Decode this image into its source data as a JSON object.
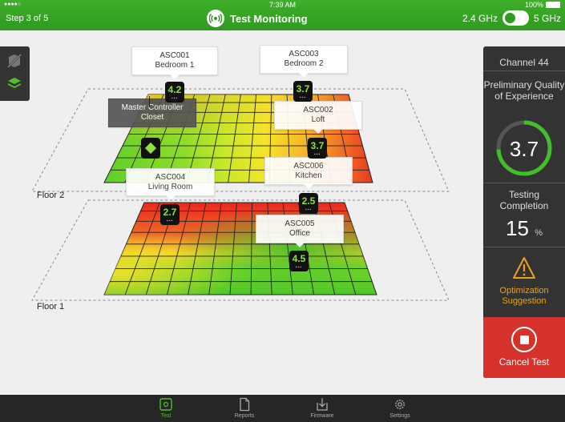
{
  "status_bar": {
    "clock": "7:39 AM",
    "battery": "100%"
  },
  "header": {
    "step": "Step 3 of 5",
    "title": "Test Monitoring",
    "band_left": "2.4 GHz",
    "band_right": "5 GHz",
    "band_toggle_on": true
  },
  "floors": [
    {
      "label": "Floor 2"
    },
    {
      "label": "Floor 1"
    }
  ],
  "controller": {
    "id": "Master Controller",
    "room": "Closet"
  },
  "devices": [
    {
      "id": "ASC001",
      "room": "Bedroom 1",
      "score": "4.2"
    },
    {
      "id": "ASC003",
      "room": "Bedroom 2",
      "score": "3.7"
    },
    {
      "id": "ASC002",
      "room": "Loft",
      "score": "3.7"
    },
    {
      "id": "ASC004",
      "room": "Living Room",
      "score": "2.7"
    },
    {
      "id": "ASC006",
      "room": "Kitchen",
      "score": "2.5"
    },
    {
      "id": "ASC005",
      "room": "Office",
      "score": "4.5"
    }
  ],
  "panel": {
    "channel": "Channel 44",
    "qoe_label": "Preliminary Quality of Experience",
    "qoe_value": "3.7",
    "qoe_fraction": 0.74,
    "completion_label": "Testing Completion",
    "completion_value": "15",
    "completion_unit": "%",
    "suggestion": "Optimization Suggestion",
    "cancel": "Cancel Test"
  },
  "tabs": [
    {
      "label": "Test",
      "active": true
    },
    {
      "label": "Reports",
      "active": false
    },
    {
      "label": "Firmware",
      "active": false
    },
    {
      "label": "Settings",
      "active": false
    }
  ],
  "colors": {
    "brand_green": "#3fae2a",
    "score_green": "#8fe23e",
    "cancel_red": "#d6322c",
    "warning_orange": "#e8a21b"
  }
}
